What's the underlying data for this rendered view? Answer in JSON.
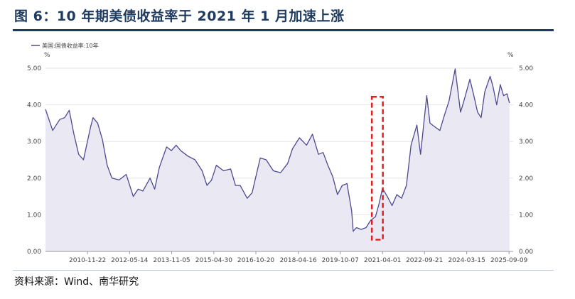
{
  "figure": {
    "title": "图 6：10 年期美债收益率于 2021 年 1 月加速上涨",
    "source": "资料来源：Wind、南华研究"
  },
  "chart_data": {
    "type": "area",
    "title": "图 6：10 年期美债收益率于 2021 年 1 月加速上涨",
    "ylabel_left": "%",
    "ylabel_right": "%",
    "ylim": [
      0,
      5
    ],
    "yticks": [
      "0.00",
      "1.00",
      "2.00",
      "3.00",
      "4.00",
      "5.00"
    ],
    "x_range": [
      "2009-06-01",
      "2025-11-01"
    ],
    "xticks": [
      "2010-11-22",
      "2012-05-14",
      "2013-11-05",
      "2015-04-30",
      "2016-10-20",
      "2018-04-16",
      "2019-10-07",
      "2021-04-01",
      "2022-09-21",
      "2024-03-15",
      "2025-09-09"
    ],
    "grid": true,
    "legend_position": "top-left",
    "series": [
      {
        "name": "美国:国债收益率:10年",
        "color": "#4e4990",
        "fill": "#e9e8f3",
        "x": [
          "2009-06-01",
          "2009-09-01",
          "2009-12-01",
          "2010-02-01",
          "2010-04-01",
          "2010-06-01",
          "2010-08-01",
          "2010-10-01",
          "2011-01-01",
          "2011-02-01",
          "2011-04-01",
          "2011-06-01",
          "2011-08-01",
          "2011-10-01",
          "2012-01-01",
          "2012-04-01",
          "2012-07-01",
          "2012-09-01",
          "2012-11-01",
          "2013-02-01",
          "2013-04-01",
          "2013-06-01",
          "2013-09-01",
          "2013-11-01",
          "2014-01-01",
          "2014-03-01",
          "2014-06-01",
          "2014-09-01",
          "2014-12-01",
          "2015-02-01",
          "2015-04-01",
          "2015-06-01",
          "2015-09-01",
          "2015-12-01",
          "2016-02-01",
          "2016-04-01",
          "2016-07-01",
          "2016-09-01",
          "2016-11-01",
          "2016-12-15",
          "2017-03-01",
          "2017-06-01",
          "2017-09-01",
          "2017-12-01",
          "2018-02-01",
          "2018-05-01",
          "2018-08-01",
          "2018-10-15",
          "2019-01-01",
          "2019-03-01",
          "2019-05-01",
          "2019-07-01",
          "2019-09-01",
          "2019-11-01",
          "2020-01-01",
          "2020-03-01",
          "2020-03-20",
          "2020-05-01",
          "2020-07-01",
          "2020-09-01",
          "2020-11-01",
          "2021-01-01",
          "2021-02-15",
          "2021-03-31",
          "2021-06-01",
          "2021-08-01",
          "2021-10-01",
          "2021-12-01",
          "2022-02-01",
          "2022-04-01",
          "2022-06-15",
          "2022-08-01",
          "2022-10-20",
          "2022-12-01",
          "2023-02-01",
          "2023-04-06",
          "2023-06-01",
          "2023-08-01",
          "2023-10-19",
          "2023-12-27",
          "2024-02-01",
          "2024-04-25",
          "2024-06-15",
          "2024-08-01",
          "2024-09-16",
          "2024-11-01",
          "2025-01-10",
          "2025-02-15",
          "2025-04-04",
          "2025-05-20",
          "2025-07-01",
          "2025-08-15",
          "2025-09-15"
        ],
        "values": [
          3.88,
          3.3,
          3.6,
          3.65,
          3.85,
          3.2,
          2.65,
          2.5,
          3.4,
          3.65,
          3.5,
          3.05,
          2.35,
          2.0,
          1.95,
          2.1,
          1.5,
          1.7,
          1.65,
          2.0,
          1.7,
          2.3,
          2.85,
          2.75,
          2.9,
          2.75,
          2.6,
          2.5,
          2.2,
          1.8,
          1.95,
          2.35,
          2.2,
          2.25,
          1.8,
          1.8,
          1.45,
          1.6,
          2.15,
          2.55,
          2.5,
          2.2,
          2.15,
          2.4,
          2.8,
          3.1,
          2.9,
          3.2,
          2.65,
          2.7,
          2.35,
          2.05,
          1.55,
          1.8,
          1.85,
          1.1,
          0.55,
          0.65,
          0.6,
          0.65,
          0.85,
          0.95,
          1.3,
          1.72,
          1.5,
          1.25,
          1.55,
          1.45,
          1.8,
          2.9,
          3.45,
          2.65,
          4.25,
          3.5,
          3.4,
          3.3,
          3.7,
          4.1,
          4.98,
          3.8,
          4.05,
          4.7,
          4.25,
          3.8,
          3.65,
          4.35,
          4.78,
          4.5,
          4.0,
          4.55,
          4.25,
          4.3,
          4.05
        ]
      }
    ]
  },
  "annotations": [
    {
      "name": "highlight-box",
      "color": "#e02020",
      "x_start": "2020-11-15",
      "x_end": "2021-04-05",
      "y_bottom": 0.32,
      "y_top": 4.22
    }
  ]
}
